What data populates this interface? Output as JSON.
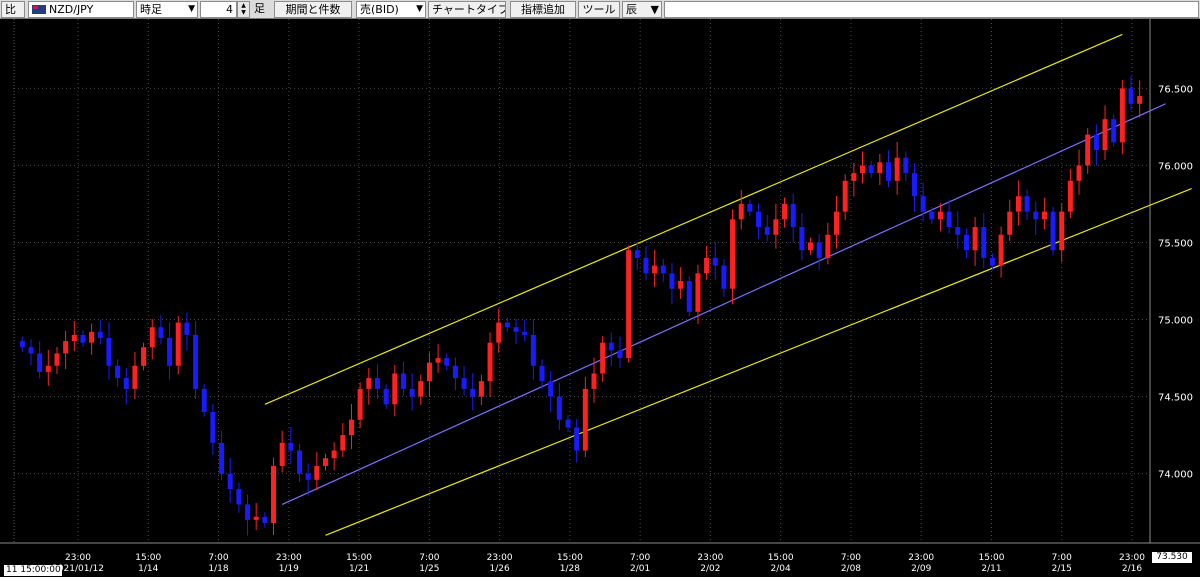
{
  "toolbar": {
    "compare_label": "比",
    "symbol": "NZD/JPY",
    "timeframe": "時足",
    "count_value": "4",
    "count_unit": "足",
    "period_button": "期間と件数",
    "side_select": "売(BID)",
    "chart_type_button": "チャートタイプ",
    "indicator_button": "指標追加",
    "tool_button": "ツール",
    "extra_button": "辰"
  },
  "cursor_time": "11 15:00:00",
  "cursor_price": "73.530",
  "colors": {
    "up": "#ff2020",
    "down": "#1a1aff",
    "channel": "#e8e800",
    "midline": "#7a70ff",
    "grid": "#4a4a4a"
  },
  "chart_data": {
    "type": "candlestick",
    "y_ticks": [
      "76.500",
      "76.000",
      "75.500",
      "75.000",
      "74.500",
      "74.000"
    ],
    "x_ticks": [
      {
        "time": "23:00",
        "date": "2021/01/12"
      },
      {
        "time": "15:00",
        "date": "1/14"
      },
      {
        "time": "7:00",
        "date": "1/18"
      },
      {
        "time": "23:00",
        "date": "1/19"
      },
      {
        "time": "15:00",
        "date": "1/21"
      },
      {
        "time": "7:00",
        "date": "1/25"
      },
      {
        "time": "23:00",
        "date": "1/26"
      },
      {
        "time": "15:00",
        "date": "1/28"
      },
      {
        "time": "7:00",
        "date": "2/01"
      },
      {
        "time": "23:00",
        "date": "2/02"
      },
      {
        "time": "15:00",
        "date": "2/04"
      },
      {
        "time": "7:00",
        "date": "2/08"
      },
      {
        "time": "23:00",
        "date": "2/09"
      },
      {
        "time": "15:00",
        "date": "2/11"
      },
      {
        "time": "7:00",
        "date": "2/15"
      },
      {
        "time": "23:00",
        "date": "2/16"
      }
    ],
    "close_series": [
      74.82,
      74.78,
      74.66,
      74.7,
      74.78,
      74.86,
      74.9,
      74.85,
      74.92,
      74.88,
      74.7,
      74.62,
      74.55,
      74.7,
      74.82,
      74.95,
      74.88,
      74.7,
      74.98,
      74.9,
      74.55,
      74.4,
      74.2,
      74.0,
      73.9,
      73.8,
      73.7,
      73.72,
      73.68,
      74.05,
      74.2,
      74.15,
      74.0,
      73.96,
      74.05,
      74.1,
      74.15,
      74.25,
      74.35,
      74.55,
      74.62,
      74.55,
      74.45,
      74.65,
      74.55,
      74.5,
      74.6,
      74.72,
      74.75,
      74.7,
      74.62,
      74.55,
      74.5,
      74.6,
      74.85,
      74.98,
      74.95,
      74.92,
      74.9,
      74.7,
      74.6,
      74.5,
      74.35,
      74.3,
      74.15,
      74.55,
      74.65,
      74.85,
      74.8,
      74.75,
      75.45,
      75.4,
      75.3,
      75.35,
      75.3,
      75.2,
      75.25,
      75.05,
      75.3,
      75.4,
      75.35,
      75.2,
      75.65,
      75.75,
      75.7,
      75.6,
      75.55,
      75.65,
      75.75,
      75.6,
      75.45,
      75.5,
      75.4,
      75.55,
      75.7,
      75.9,
      75.95,
      76.0,
      75.95,
      76.02,
      75.9,
      76.05,
      75.95,
      75.8,
      75.7,
      75.65,
      75.7,
      75.6,
      75.55,
      75.45,
      75.6,
      75.4,
      75.35,
      75.55,
      75.7,
      75.8,
      75.7,
      75.65,
      75.7,
      75.45,
      75.7,
      75.9,
      76.0,
      76.2,
      76.1,
      76.3,
      76.15,
      76.5,
      76.4,
      76.45
    ],
    "channel": {
      "upper": {
        "from": {
          "index": 28,
          "price": 74.45
        },
        "to": {
          "index": 127,
          "price": 76.85
        }
      },
      "middle": {
        "from": {
          "index": 30,
          "price": 73.8
        },
        "to": {
          "index": 132,
          "price": 76.4
        }
      },
      "lower": {
        "from": {
          "index": 35,
          "price": 73.6
        },
        "to": {
          "index": 135,
          "price": 75.85
        }
      }
    },
    "ylim": [
      73.55,
      76.95
    ]
  }
}
